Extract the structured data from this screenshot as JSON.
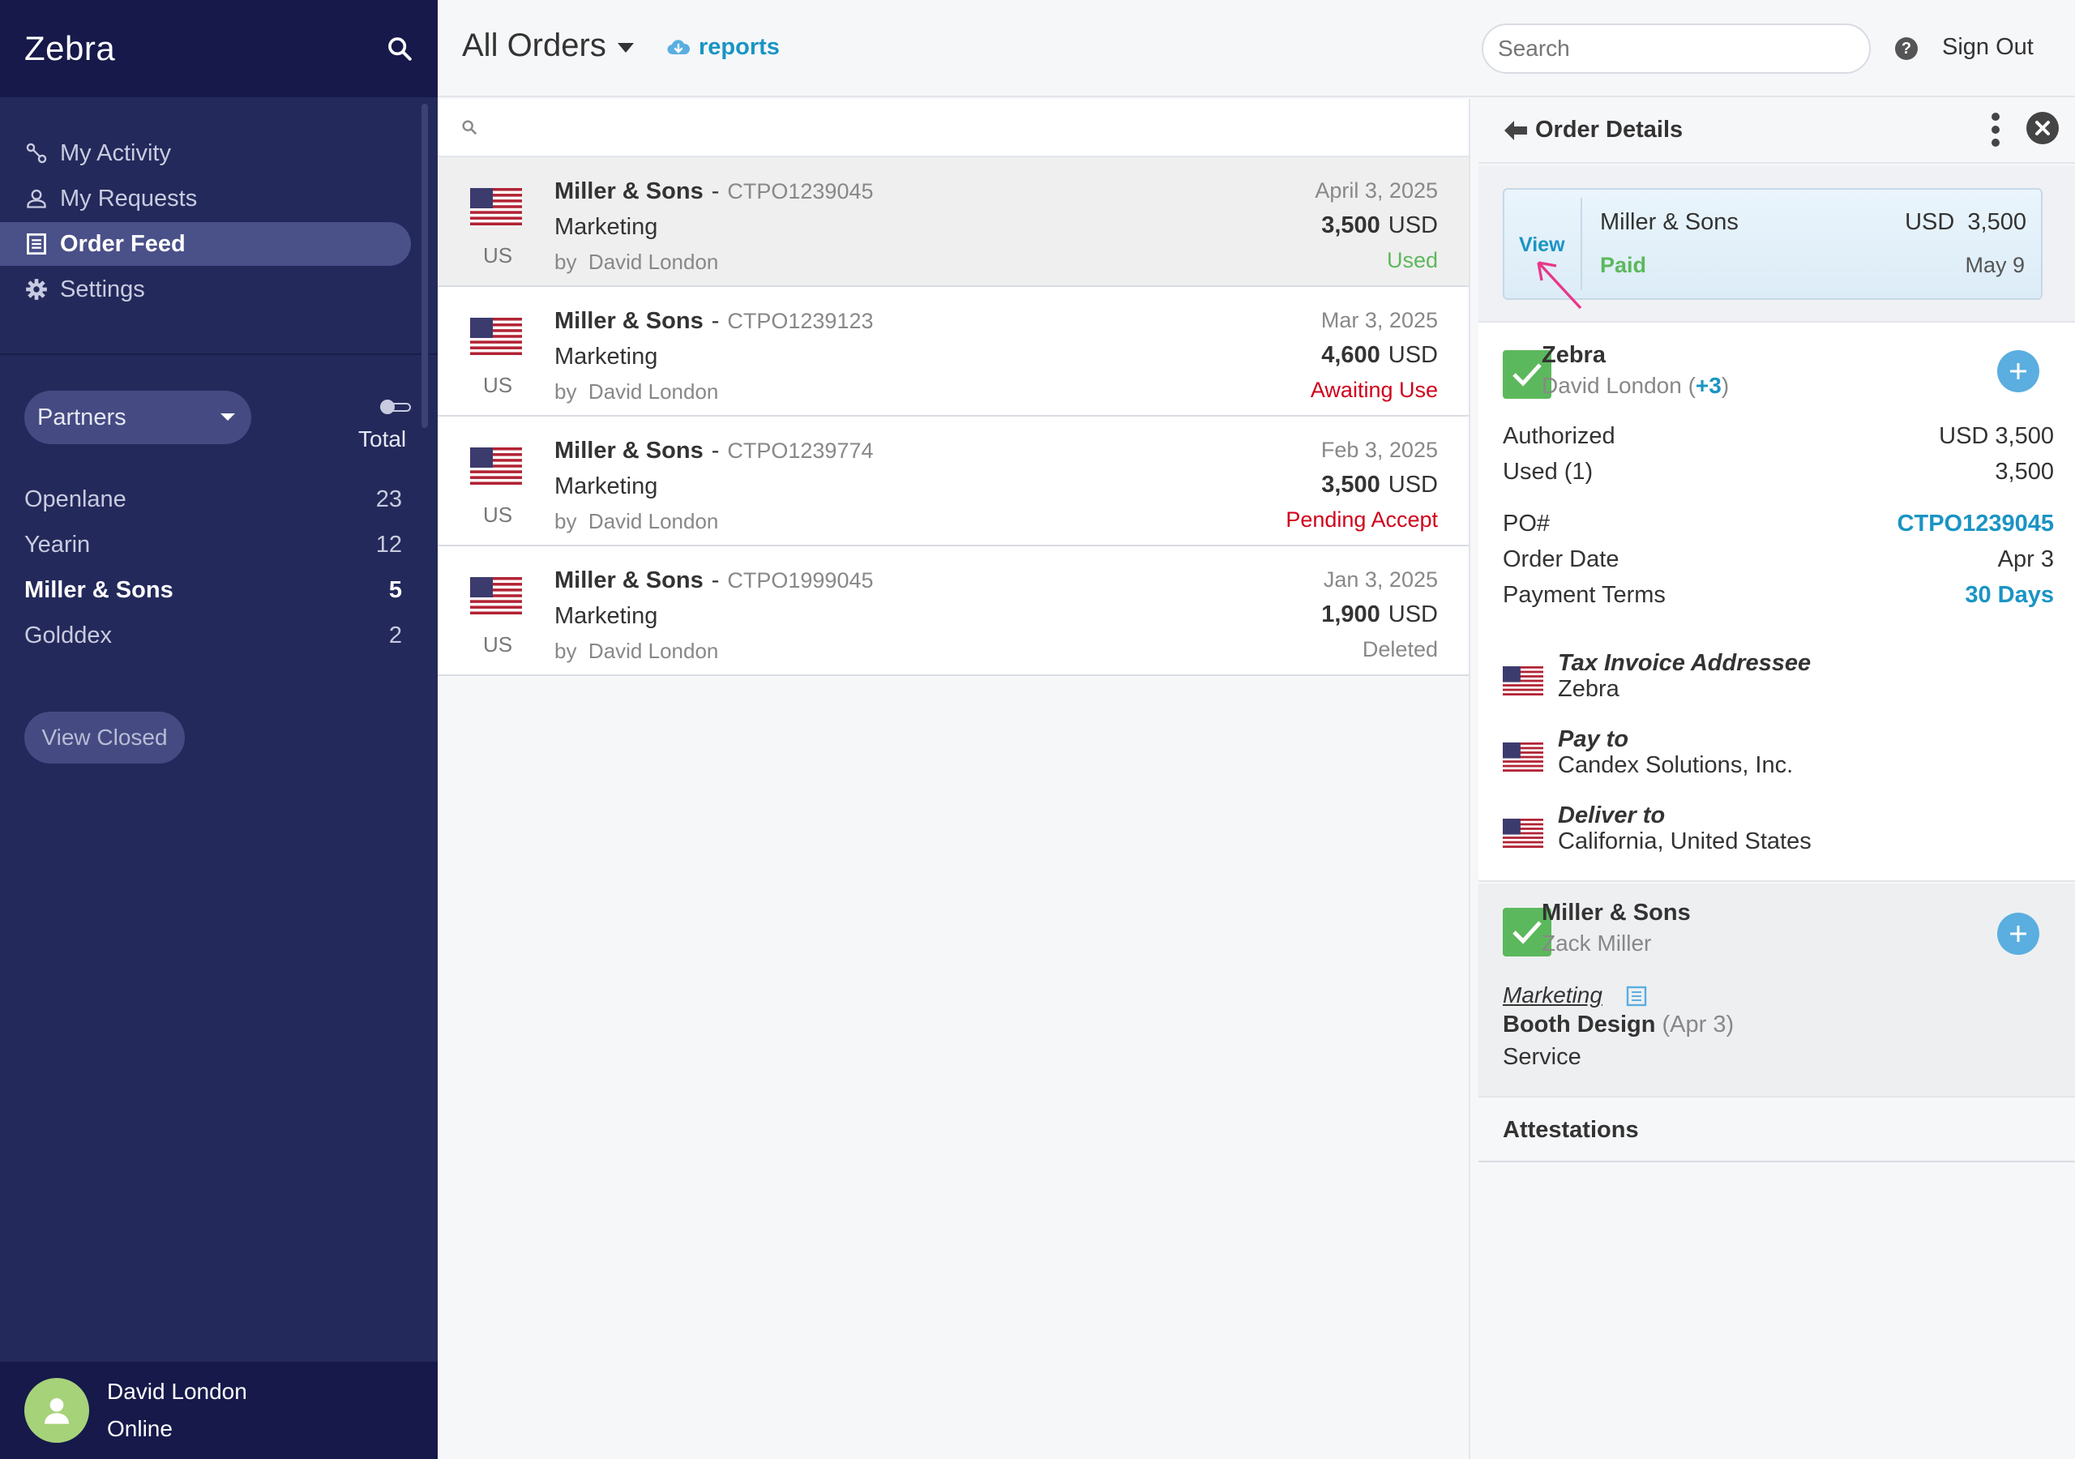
{
  "sidebar": {
    "brand": "Zebra",
    "nav": [
      {
        "label": "My Activity",
        "icon": "activity-icon"
      },
      {
        "label": "My Requests",
        "icon": "user-icon"
      },
      {
        "label": "Order Feed",
        "icon": "document-icon",
        "active": true
      },
      {
        "label": "Settings",
        "icon": "gear-icon"
      }
    ],
    "partners_label": "Partners",
    "total_label": "Total",
    "partners": [
      {
        "name": "Openlane",
        "count": "23"
      },
      {
        "name": "Yearin",
        "count": "12"
      },
      {
        "name": "Miller & Sons",
        "count": "5"
      },
      {
        "name": "Golddex",
        "count": "2"
      }
    ],
    "view_closed": "View Closed",
    "user": {
      "name": "David London",
      "status": "Online"
    }
  },
  "topbar": {
    "title": "All Orders",
    "reports": "reports",
    "search_placeholder": "Search",
    "help": "?",
    "sign_out": "Sign Out"
  },
  "orders": [
    {
      "country": "US",
      "company": "Miller & Sons",
      "po": "CTPO1239045",
      "category": "Marketing",
      "by": "by",
      "person": "David London",
      "date": "April 3, 2025",
      "amount": "3,500",
      "currency": "USD",
      "status": "Used",
      "status_color": "#5cb85c",
      "selected": true
    },
    {
      "country": "US",
      "company": "Miller & Sons",
      "po": "CTPO1239123",
      "category": "Marketing",
      "by": "by",
      "person": "David London",
      "date": "Mar 3, 2025",
      "amount": "4,600",
      "currency": "USD",
      "status": "Awaiting Use",
      "status_color": "#d0021b"
    },
    {
      "country": "US",
      "company": "Miller & Sons",
      "po": "CTPO1239774",
      "category": "Marketing",
      "by": "by",
      "person": "David London",
      "date": "Feb 3, 2025",
      "amount": "3,500",
      "currency": "USD",
      "status": "Pending Accept",
      "status_color": "#d0021b"
    },
    {
      "country": "US",
      "company": "Miller & Sons",
      "po": "CTPO1999045",
      "category": "Marketing",
      "by": "by",
      "person": "David London",
      "date": "Jan 3, 2025",
      "amount": "1,900",
      "currency": "USD",
      "status": "Deleted",
      "status_color": "#888888"
    }
  ],
  "detail": {
    "title": "Order Details",
    "summary": {
      "view": "View",
      "name": "Miller & Sons",
      "currency": "USD",
      "amount": "3,500",
      "status": "Paid",
      "date": "May 9"
    },
    "buyer": {
      "name": "Zebra",
      "person": "David London",
      "extra": "+3"
    },
    "authorized_label": "Authorized",
    "authorized_value": "USD  3,500",
    "used_label": "Used  (1)",
    "used_value": "3,500",
    "po_label": "PO#",
    "po_value": "CTPO1239045",
    "order_date_label": "Order Date",
    "order_date_value": "Apr 3",
    "payment_terms_label": "Payment Terms",
    "payment_terms_value": "30 Days",
    "addresses": [
      {
        "title": "Tax Invoice Addressee",
        "value": "Zebra"
      },
      {
        "title": "Pay to",
        "value": "Candex Solutions, Inc."
      },
      {
        "title": "Deliver to",
        "value": "California, United States"
      }
    ],
    "vendor": {
      "name": "Miller & Sons",
      "person": "Zack Miller",
      "category": "Marketing",
      "item": "Booth Design",
      "item_date": "(Apr 3)",
      "type": "Service"
    },
    "attestations": "Attestations"
  },
  "colors": {
    "sidebar": "#23295a",
    "sidebar_dark": "#16194a",
    "accent": "#1a94c4",
    "green": "#5cb85c",
    "red": "#d0021b",
    "annotation_arrow": "#e8388a"
  }
}
